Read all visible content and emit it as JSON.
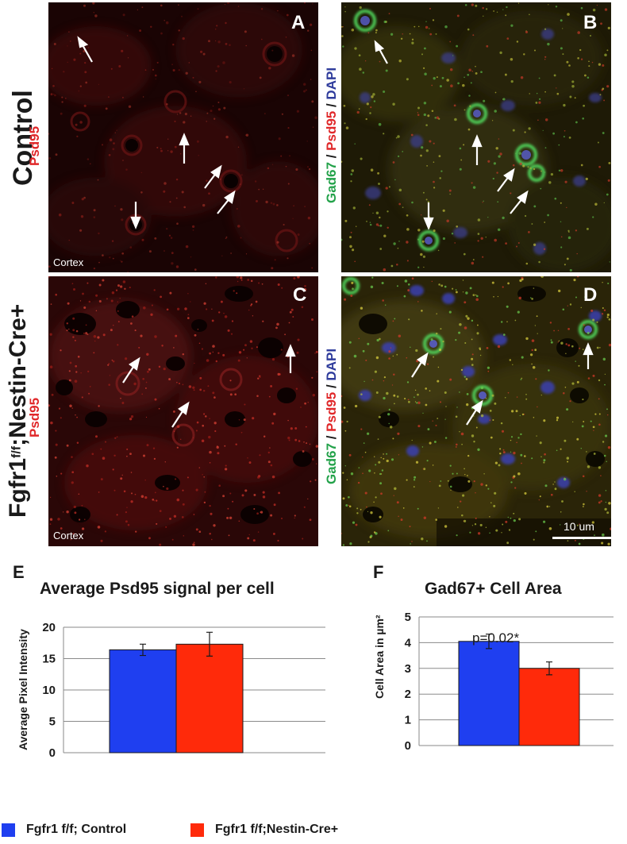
{
  "figure": {
    "row_labels": {
      "control": {
        "genotype": "Control",
        "stain": "Psd95"
      },
      "mutant": {
        "genotype_main": "Fgfr1",
        "genotype_sup": "f/f",
        "genotype_rest": ";Nestin-Cre+",
        "stain": "Psd95"
      }
    },
    "merge_label": {
      "gad": "Gad67",
      "sep1": " / ",
      "psd": "Psd95",
      "sep2": " / ",
      "dapi": "DAPI"
    },
    "panels": {
      "A": {
        "letter": "A",
        "region": "Cortex"
      },
      "B": {
        "letter": "B"
      },
      "C": {
        "letter": "C",
        "region": "Cortex"
      },
      "D": {
        "letter": "D",
        "scale_bar": "10 um"
      }
    }
  },
  "colors": {
    "control": "#1f3ff0",
    "mutant": "#ff2a0a",
    "gad67": "#23a24a",
    "psd95": "#e0282a",
    "dapi": "#2f3c9c"
  },
  "legend": {
    "control": "Fgfr1 f/f; Control",
    "mutant": "Fgfr1 f/f;Nestin-Cre+"
  },
  "chart_data": [
    {
      "panel": "E",
      "type": "bar",
      "title": "Average Psd95 signal per cell",
      "ylabel": "Average Pixel Intensity",
      "ylim": [
        0,
        20
      ],
      "yticks": [
        "0",
        "5",
        "10",
        "15",
        "20"
      ],
      "grid": true,
      "series": [
        {
          "name": "Fgfr1 f/f; Control",
          "value": 16.4,
          "error": 0.9
        },
        {
          "name": "Fgfr1 f/f;Nestin-Cre+",
          "value": 17.3,
          "error": 1.9
        }
      ]
    },
    {
      "panel": "F",
      "type": "bar",
      "title": "Gad67+ Cell Area",
      "ylabel": "Cell Area in µm²",
      "ylim": [
        0,
        5
      ],
      "yticks": [
        "0",
        "1",
        "2",
        "3",
        "4",
        "5"
      ],
      "grid": true,
      "annotation": "p=0.02*",
      "series": [
        {
          "name": "Fgfr1 f/f; Control",
          "value": 4.05,
          "error": 0.28
        },
        {
          "name": "Fgfr1 f/f;Nestin-Cre+",
          "value": 3.0,
          "error": 0.25
        }
      ]
    }
  ]
}
